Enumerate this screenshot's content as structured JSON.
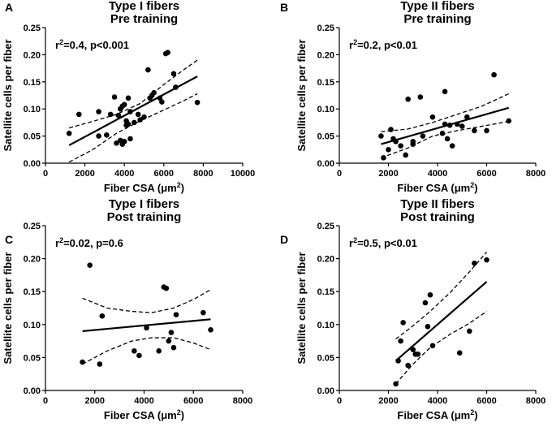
{
  "chart_data": [
    {
      "type": "scatter",
      "panel": "A",
      "title": "Type I fibers",
      "subtitle": "Pre training",
      "xlabel": "Fiber CSA (",
      "xunit": "μm",
      "xunit_exp": "2",
      "ylabel": "Satellite cells per fiber",
      "xlim": [
        0,
        10000
      ],
      "ylim": [
        0,
        0.25
      ],
      "xticks": [
        0,
        2000,
        4000,
        6000,
        8000,
        10000
      ],
      "yticks": [
        0.0,
        0.05,
        0.1,
        0.15,
        0.2,
        0.25
      ],
      "xtick_labels": [
        "0",
        "2000",
        "4000",
        "6000",
        "8000",
        "10000"
      ],
      "ytick_labels": [
        "0.00",
        "0.05",
        "0.10",
        "0.15",
        "0.20",
        "0.25"
      ],
      "stat": {
        "r_symbol": "r",
        "r_exp": "2",
        "text": "=0.4, p<0.001"
      },
      "fit": {
        "x": [
          1200,
          7700
        ],
        "y": [
          0.033,
          0.16
        ]
      },
      "ci_upper": {
        "x": [
          1200,
          2400,
          3600,
          4800,
          6000,
          7000,
          7700
        ],
        "y": [
          0.065,
          0.077,
          0.09,
          0.11,
          0.145,
          0.172,
          0.19
        ]
      },
      "ci_lower": {
        "x": [
          1200,
          2400,
          3600,
          4800,
          6000,
          7000,
          7700
        ],
        "y": [
          0.002,
          0.025,
          0.055,
          0.078,
          0.098,
          0.115,
          0.128
        ]
      },
      "points": {
        "x": [
          1200,
          1700,
          2700,
          2700,
          3100,
          3300,
          3500,
          3600,
          3700,
          3800,
          3800,
          3800,
          3900,
          3900,
          4000,
          4000,
          4100,
          4100,
          4200,
          4200,
          4300,
          4300,
          4500,
          4700,
          4800,
          5000,
          5200,
          5300,
          5400,
          5500,
          5800,
          5900,
          6100,
          6200,
          6500,
          6600,
          7700
        ],
        "y": [
          0.055,
          0.09,
          0.05,
          0.095,
          0.052,
          0.09,
          0.122,
          0.037,
          0.088,
          0.042,
          0.1,
          0.1,
          0.035,
          0.105,
          0.04,
          0.108,
          0.078,
          0.07,
          0.072,
          0.12,
          0.045,
          0.095,
          0.075,
          0.09,
          0.08,
          0.085,
          0.172,
          0.12,
          0.125,
          0.13,
          0.12,
          0.113,
          0.202,
          0.204,
          0.165,
          0.14,
          0.112
        ]
      }
    },
    {
      "type": "scatter",
      "panel": "B",
      "title": "Type II fibers",
      "subtitle": "Pre training",
      "xlabel": "Fiber CSA (",
      "xunit": "μm",
      "xunit_exp": "2",
      "ylabel": "Satellite cells per fiber",
      "xlim": [
        0,
        8000
      ],
      "ylim": [
        0,
        0.25
      ],
      "xticks": [
        0,
        2000,
        4000,
        6000,
        8000
      ],
      "yticks": [
        0.0,
        0.05,
        0.1,
        0.15,
        0.2,
        0.25
      ],
      "xtick_labels": [
        "0",
        "2000",
        "4000",
        "6000",
        "8000"
      ],
      "ytick_labels": [
        "0.00",
        "0.05",
        "0.10",
        "0.15",
        "0.20",
        "0.25"
      ],
      "stat": {
        "r_symbol": "r",
        "r_exp": "2",
        "text": "=0.2, p<0.01"
      },
      "fit": {
        "x": [
          1700,
          6900
        ],
        "y": [
          0.035,
          0.102
        ]
      },
      "ci_upper": {
        "x": [
          1700,
          2800,
          3800,
          4800,
          5800,
          6900
        ],
        "y": [
          0.058,
          0.063,
          0.075,
          0.09,
          0.105,
          0.128
        ]
      },
      "ci_lower": {
        "x": [
          1700,
          2800,
          3800,
          4800,
          5800,
          6900
        ],
        "y": [
          0.01,
          0.028,
          0.05,
          0.06,
          0.068,
          0.077
        ]
      },
      "points": {
        "x": [
          1700,
          1800,
          2000,
          2100,
          2200,
          2300,
          2500,
          2700,
          2800,
          3000,
          3000,
          3300,
          3400,
          3800,
          4200,
          4300,
          4300,
          4400,
          4500,
          4600,
          4800,
          5000,
          5200,
          5500,
          6000,
          6300,
          6900
        ],
        "y": [
          0.05,
          0.01,
          0.025,
          0.062,
          0.045,
          0.04,
          0.032,
          0.015,
          0.118,
          0.035,
          0.04,
          0.122,
          0.05,
          0.085,
          0.055,
          0.072,
          0.132,
          0.045,
          0.07,
          0.032,
          0.072,
          0.068,
          0.085,
          0.06,
          0.06,
          0.163,
          0.078
        ]
      }
    },
    {
      "type": "scatter",
      "panel": "C",
      "title": "Type I fibers",
      "subtitle": "Post training",
      "xlabel": "Fiber CSA (",
      "xunit": "μm",
      "xunit_exp": "2",
      "ylabel": "Satellite cells per fiber",
      "xlim": [
        0,
        8000
      ],
      "ylim": [
        0,
        0.25
      ],
      "xticks": [
        0,
        2000,
        4000,
        6000,
        8000
      ],
      "yticks": [
        0.0,
        0.05,
        0.1,
        0.15,
        0.2,
        0.25
      ],
      "xtick_labels": [
        "0",
        "2000",
        "4000",
        "6000",
        "8000"
      ],
      "ytick_labels": [
        "0.00",
        "0.05",
        "0.10",
        "0.15",
        "0.20",
        "0.25"
      ],
      "stat": {
        "r_symbol": "r",
        "r_exp": "2",
        "text": "=0.02, p=0.6"
      },
      "fit": {
        "x": [
          1500,
          6700
        ],
        "y": [
          0.09,
          0.108
        ]
      },
      "ci_upper": {
        "x": [
          1500,
          2500,
          3500,
          4300,
          5200,
          6000,
          6700
        ],
        "y": [
          0.14,
          0.125,
          0.12,
          0.118,
          0.125,
          0.138,
          0.153
        ]
      },
      "ci_lower": {
        "x": [
          1500,
          2500,
          3500,
          4300,
          5200,
          6000,
          6700
        ],
        "y": [
          0.04,
          0.06,
          0.075,
          0.08,
          0.08,
          0.072,
          0.062
        ]
      },
      "points": {
        "x": [
          1500,
          1800,
          2200,
          2300,
          3600,
          3800,
          4100,
          4600,
          4800,
          4900,
          5000,
          5100,
          5200,
          5300,
          6400,
          6700
        ],
        "y": [
          0.043,
          0.19,
          0.04,
          0.113,
          0.06,
          0.053,
          0.095,
          0.06,
          0.157,
          0.155,
          0.075,
          0.088,
          0.065,
          0.115,
          0.118,
          0.092
        ]
      }
    },
    {
      "type": "scatter",
      "panel": "D",
      "title": "Type II fibers",
      "subtitle": "Post training",
      "xlabel": "Fiber CSA (",
      "xunit": "μm",
      "xunit_exp": "2",
      "ylabel": "Satellite cells per fiber",
      "xlim": [
        0,
        8000
      ],
      "ylim": [
        0,
        0.25
      ],
      "xticks": [
        0,
        2000,
        4000,
        6000,
        8000
      ],
      "yticks": [
        0.0,
        0.05,
        0.1,
        0.15,
        0.2,
        0.25
      ],
      "xtick_labels": [
        "0",
        "2000",
        "4000",
        "6000",
        "8000"
      ],
      "ytick_labels": [
        "0.00",
        "0.05",
        "0.10",
        "0.15",
        "0.20",
        "0.25"
      ],
      "stat": {
        "r_symbol": "r",
        "r_exp": "2",
        "text": "=0.5, p<0.01"
      },
      "fit": {
        "x": [
          2300,
          6000
        ],
        "y": [
          0.045,
          0.165
        ]
      },
      "ci_upper": {
        "x": [
          2300,
          3000,
          3700,
          4500,
          5300,
          6000
        ],
        "y": [
          0.078,
          0.098,
          0.12,
          0.148,
          0.18,
          0.21
        ]
      },
      "ci_lower": {
        "x": [
          2300,
          3000,
          3700,
          4500,
          5300,
          6000
        ],
        "y": [
          0.01,
          0.04,
          0.065,
          0.085,
          0.102,
          0.12
        ]
      },
      "points": {
        "x": [
          2300,
          2400,
          2500,
          2600,
          2800,
          3000,
          3100,
          3200,
          3500,
          3600,
          3700,
          3800,
          4900,
          5300,
          5500,
          6000
        ],
        "y": [
          0.01,
          0.045,
          0.075,
          0.103,
          0.038,
          0.062,
          0.055,
          0.055,
          0.133,
          0.097,
          0.145,
          0.068,
          0.057,
          0.09,
          0.193,
          0.198
        ]
      }
    }
  ]
}
